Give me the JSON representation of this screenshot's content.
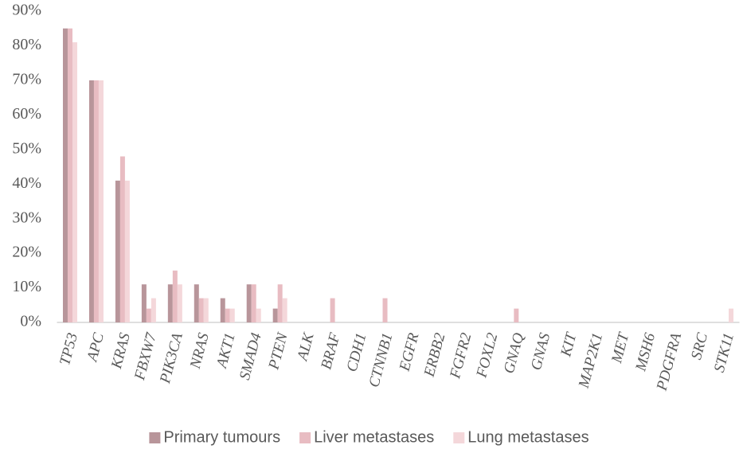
{
  "chart_data": {
    "type": "bar",
    "categories": [
      "TP53",
      "APC",
      "KRAS",
      "FBXW7",
      "PIK3CA",
      "NRAS",
      "AKT1",
      "SMAD4",
      "PTEN",
      "ALK",
      "BRAF",
      "CDH1",
      "CTNNB1",
      "EGFR",
      "ERBB2",
      "FGFR2",
      "FOXL2",
      "GNAQ",
      "GNAS",
      "KIT",
      "MAP2K1",
      "MET",
      "MSH6",
      "PDGFRA",
      "SRC",
      "STK11"
    ],
    "series": [
      {
        "name": "Primary tumours",
        "color": "#b8959a",
        "values": [
          85,
          70,
          41,
          11,
          11,
          11,
          7,
          11,
          4,
          0,
          0,
          0,
          0,
          0,
          0,
          0,
          0,
          0,
          0,
          0,
          0,
          0,
          0,
          0,
          0,
          0
        ]
      },
      {
        "name": "Liver metastases",
        "color": "#e8bcc2",
        "values": [
          85,
          70,
          48,
          4,
          15,
          7,
          4,
          11,
          11,
          0,
          7,
          0,
          7,
          0,
          0,
          0,
          0,
          4,
          0,
          0,
          0,
          0,
          0,
          0,
          0,
          0
        ]
      },
      {
        "name": "Lung metastases",
        "color": "#f4d7da",
        "values": [
          81,
          70,
          41,
          7,
          11,
          7,
          4,
          4,
          7,
          0,
          0,
          0,
          0,
          0,
          0,
          0,
          0,
          0,
          0,
          0,
          0,
          0,
          0,
          0,
          0,
          4
        ]
      }
    ],
    "ylim": [
      0,
      90
    ],
    "yticks": [
      {
        "value": 0,
        "label": "0%"
      },
      {
        "value": 10,
        "label": "10%"
      },
      {
        "value": 20,
        "label": "20%"
      },
      {
        "value": 30,
        "label": "30%"
      },
      {
        "value": 40,
        "label": "40%"
      },
      {
        "value": 50,
        "label": "50%"
      },
      {
        "value": 60,
        "label": "60%"
      },
      {
        "value": 70,
        "label": "70%"
      },
      {
        "value": 80,
        "label": "80%"
      },
      {
        "value": 90,
        "label": "90%"
      }
    ],
    "grid": false,
    "legend": "bottom"
  }
}
